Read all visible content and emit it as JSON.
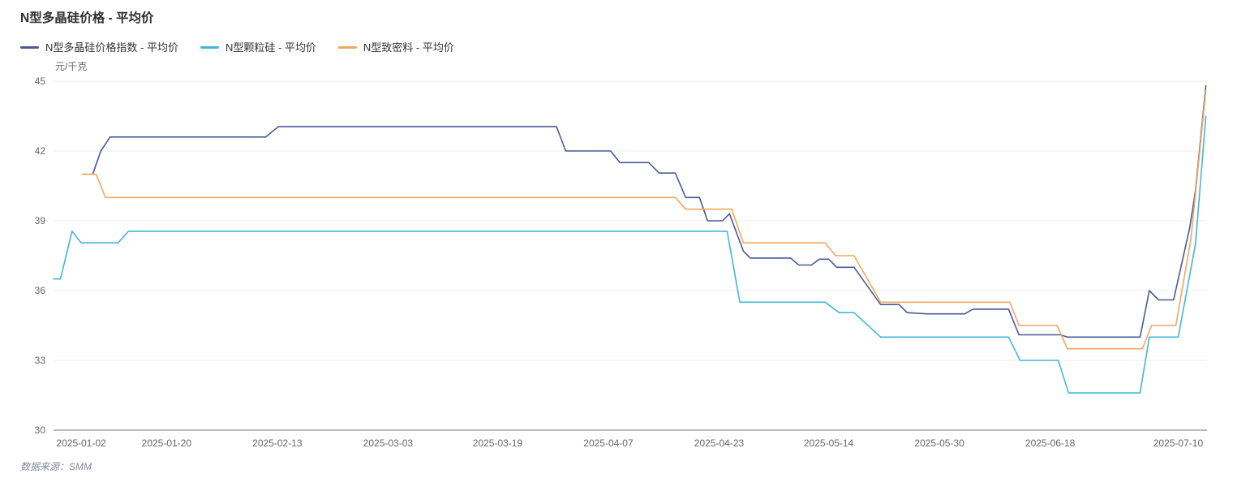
{
  "chart": {
    "title": "N型多晶硅价格 - 平均价",
    "unit": "元/千克",
    "source": "数据来源：SMM"
  },
  "chart_data": {
    "type": "line",
    "title": "N型多晶硅价格 - 平均价",
    "ylabel": "元/千克",
    "ylim": [
      30,
      45
    ],
    "yticks": [
      45,
      42,
      39,
      36,
      33,
      30
    ],
    "grid": true,
    "legend_position": "top-left",
    "grid_color": "#ececec",
    "axis_color": "#6e7079",
    "tick_label_color": "#666666",
    "xticks": [
      {
        "label": "2025-01-02",
        "pos": 2.4
      },
      {
        "label": "2025-01-20",
        "pos": 9.8
      },
      {
        "label": "2025-02-13",
        "pos": 19.4
      },
      {
        "label": "2025-03-03",
        "pos": 29.0
      },
      {
        "label": "2025-03-19",
        "pos": 38.5
      },
      {
        "label": "2025-04-07",
        "pos": 48.1
      },
      {
        "label": "2025-04-23",
        "pos": 57.7
      },
      {
        "label": "2025-05-14",
        "pos": 67.2
      },
      {
        "label": "2025-05-30",
        "pos": 76.8
      },
      {
        "label": "2025-06-18",
        "pos": 86.4
      },
      {
        "label": "2025-07-10",
        "pos": 97.5
      }
    ],
    "series": [
      {
        "name": "N型多晶硅价格指数 - 平均价",
        "color": "#4a5a96",
        "points": [
          [
            2.5,
            41.0
          ],
          [
            3.4,
            41.0
          ],
          [
            4.1,
            42.0
          ],
          [
            4.9,
            42.6
          ],
          [
            18.4,
            42.6
          ],
          [
            19.5,
            43.05
          ],
          [
            43.6,
            43.05
          ],
          [
            44.4,
            42.0
          ],
          [
            48.3,
            42.0
          ],
          [
            49.1,
            41.5
          ],
          [
            51.6,
            41.5
          ],
          [
            52.5,
            41.05
          ],
          [
            53.9,
            41.05
          ],
          [
            54.8,
            40.0
          ],
          [
            56.0,
            40.0
          ],
          [
            56.7,
            39.0
          ],
          [
            58.0,
            39.0
          ],
          [
            58.6,
            39.3
          ],
          [
            59.8,
            37.7
          ],
          [
            60.4,
            37.4
          ],
          [
            63.9,
            37.4
          ],
          [
            64.6,
            37.1
          ],
          [
            65.7,
            37.1
          ],
          [
            66.4,
            37.35
          ],
          [
            67.2,
            37.35
          ],
          [
            67.9,
            37.0
          ],
          [
            69.4,
            37.0
          ],
          [
            71.7,
            35.4
          ],
          [
            73.3,
            35.4
          ],
          [
            74.0,
            35.05
          ],
          [
            75.7,
            35.0
          ],
          [
            79.0,
            35.0
          ],
          [
            79.7,
            35.2
          ],
          [
            82.8,
            35.2
          ],
          [
            83.7,
            34.1
          ],
          [
            87.3,
            34.1
          ],
          [
            87.9,
            34.0
          ],
          [
            94.2,
            34.0
          ],
          [
            95.0,
            36.0
          ],
          [
            95.8,
            35.6
          ],
          [
            97.1,
            35.6
          ],
          [
            98.5,
            38.7
          ],
          [
            99.0,
            40.3
          ],
          [
            99.9,
            44.8
          ]
        ]
      },
      {
        "name": "N型颗粒硅 - 平均价",
        "color": "#41b7d8",
        "points": [
          [
            0.0,
            36.5
          ],
          [
            0.6,
            36.5
          ],
          [
            1.6,
            38.55
          ],
          [
            2.4,
            38.05
          ],
          [
            5.6,
            38.05
          ],
          [
            6.5,
            38.55
          ],
          [
            58.4,
            38.55
          ],
          [
            59.5,
            35.5
          ],
          [
            66.9,
            35.5
          ],
          [
            68.1,
            35.05
          ],
          [
            69.4,
            35.05
          ],
          [
            71.7,
            34.0
          ],
          [
            82.8,
            34.0
          ],
          [
            83.8,
            33.0
          ],
          [
            87.1,
            33.0
          ],
          [
            88.0,
            31.6
          ],
          [
            94.2,
            31.6
          ],
          [
            95.0,
            34.0
          ],
          [
            97.5,
            34.0
          ],
          [
            99.0,
            38.0
          ],
          [
            99.9,
            43.5
          ]
        ]
      },
      {
        "name": "N型致密料 - 平均价",
        "color": "#f4a65e",
        "points": [
          [
            2.5,
            41.0
          ],
          [
            3.7,
            41.0
          ],
          [
            4.5,
            40.0
          ],
          [
            53.9,
            40.0
          ],
          [
            54.8,
            39.5
          ],
          [
            58.8,
            39.5
          ],
          [
            59.8,
            38.05
          ],
          [
            66.9,
            38.05
          ],
          [
            67.8,
            37.5
          ],
          [
            69.4,
            37.5
          ],
          [
            71.7,
            35.5
          ],
          [
            82.9,
            35.5
          ],
          [
            83.7,
            34.5
          ],
          [
            87.0,
            34.5
          ],
          [
            87.9,
            33.5
          ],
          [
            94.4,
            33.5
          ],
          [
            95.2,
            34.5
          ],
          [
            97.3,
            34.5
          ],
          [
            98.6,
            38.2
          ],
          [
            99.9,
            44.6
          ]
        ]
      }
    ],
    "source": "数据来源：SMM"
  }
}
